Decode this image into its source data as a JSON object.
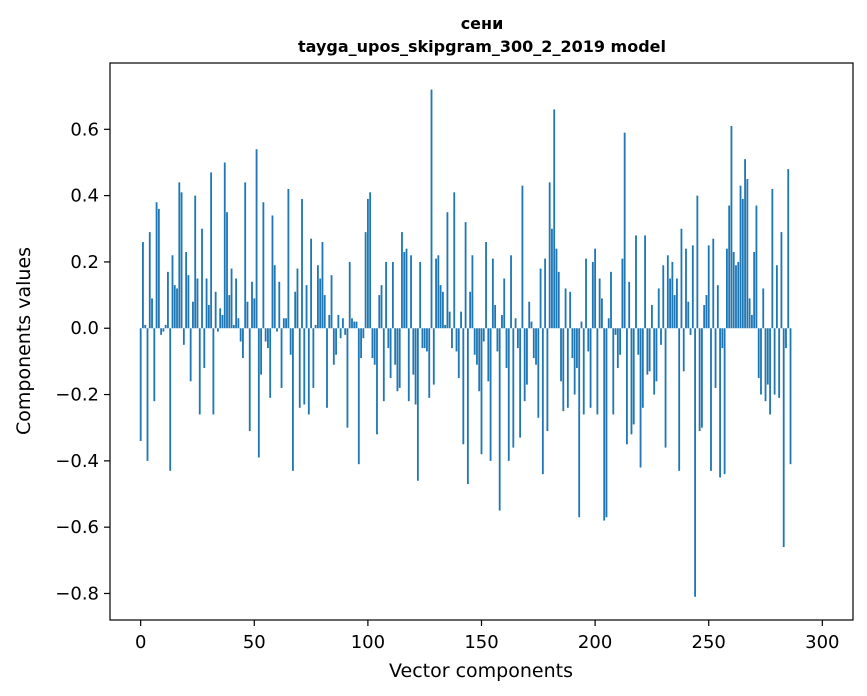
{
  "chart_data": {
    "type": "bar",
    "title": "сени",
    "subtitle": "tayga_upos_skipgram_300_2_2019 model",
    "xlabel": "Vector components",
    "ylabel": "Components values",
    "xlim": [
      -13.5,
      313.5
    ],
    "ylim": [
      -0.88,
      0.8
    ],
    "xticks": [
      0,
      50,
      100,
      150,
      200,
      250,
      300
    ],
    "yticks": [
      -0.8,
      -0.6,
      -0.4,
      -0.2,
      0.0,
      0.2,
      0.4,
      0.6
    ],
    "xtick_labels": [
      "0",
      "50",
      "100",
      "150",
      "200",
      "250",
      "300"
    ],
    "ytick_labels": [
      "−0.8",
      "−0.6",
      "−0.4",
      "−0.2",
      "0.0",
      "0.2",
      "0.4",
      "0.6"
    ],
    "bar_color": "#1f77b4",
    "grid": false,
    "values": [
      -0.34,
      0.26,
      0.01,
      -0.4,
      0.29,
      0.09,
      -0.22,
      0.38,
      0.36,
      -0.02,
      -0.01,
      0.01,
      0.17,
      -0.43,
      0.22,
      0.13,
      0.12,
      0.44,
      0.41,
      -0.05,
      0.23,
      0.16,
      -0.16,
      0.08,
      0.4,
      0.15,
      -0.26,
      0.3,
      -0.12,
      0.15,
      0.07,
      0.47,
      -0.26,
      0.11,
      -0.01,
      0.06,
      0.04,
      0.5,
      0.35,
      0.1,
      0.18,
      0.01,
      0.15,
      0.03,
      -0.04,
      -0.09,
      0.44,
      0.08,
      -0.31,
      0.14,
      0.09,
      0.54,
      -0.39,
      -0.14,
      0.38,
      -0.04,
      -0.06,
      -0.21,
      0.34,
      0.19,
      -0.01,
      0.14,
      -0.18,
      0.03,
      0.03,
      0.42,
      -0.08,
      -0.43,
      0.11,
      0.18,
      -0.24,
      0.39,
      -0.23,
      0.13,
      -0.26,
      0.27,
      -0.18,
      0.01,
      0.19,
      0.15,
      0.26,
      0.1,
      -0.24,
      0.04,
      0.16,
      -0.11,
      -0.08,
      0.04,
      -0.03,
      0.03,
      -0.02,
      -0.3,
      0.2,
      0.03,
      0.02,
      0.02,
      -0.41,
      -0.09,
      -0.03,
      0.29,
      0.39,
      0.41,
      -0.09,
      -0.11,
      -0.32,
      0.1,
      0.13,
      -0.22,
      0.2,
      -0.06,
      -0.15,
      0.2,
      -0.11,
      -0.19,
      -0.18,
      0.29,
      0.23,
      0.24,
      -0.22,
      0.22,
      -0.14,
      -0.23,
      -0.46,
      0.2,
      -0.06,
      -0.06,
      -0.07,
      -0.21,
      0.72,
      -0.17,
      0.21,
      0.22,
      0.13,
      0.11,
      0.01,
      0.35,
      0.05,
      -0.06,
      0.41,
      -0.07,
      -0.15,
      0.05,
      -0.35,
      0.32,
      -0.47,
      0.11,
      0.22,
      -0.08,
      -0.11,
      -0.19,
      -0.38,
      -0.04,
      0.26,
      -0.16,
      -0.4,
      0.21,
      0.07,
      -0.07,
      -0.55,
      0.04,
      0.15,
      -0.12,
      -0.4,
      0.22,
      -0.36,
      0.03,
      -0.06,
      -0.33,
      0.43,
      -0.22,
      -0.17,
      0.08,
      0.02,
      -0.09,
      -0.11,
      -0.27,
      0.18,
      -0.44,
      0.21,
      -0.31,
      0.44,
      0.3,
      0.66,
      0.24,
      0.17,
      -0.16,
      -0.25,
      0.12,
      -0.24,
      0.11,
      -0.09,
      -0.2,
      -0.12,
      -0.57,
      0.02,
      -0.26,
      0.21,
      -0.07,
      -0.24,
      0.2,
      0.24,
      -0.26,
      0.15,
      0.09,
      -0.58,
      -0.57,
      0.03,
      0.17,
      -0.26,
      -0.02,
      -0.12,
      -0.08,
      0.21,
      0.59,
      -0.35,
      0.14,
      -0.32,
      -0.29,
      0.28,
      -0.08,
      -0.42,
      -0.24,
      0.28,
      -0.14,
      -0.13,
      0.07,
      -0.2,
      -0.16,
      0.12,
      -0.05,
      0.19,
      -0.36,
      0.22,
      0.15,
      0.2,
      0.1,
      0.15,
      -0.43,
      0.3,
      -0.13,
      0.24,
      0.08,
      -0.02,
      0.25,
      -0.81,
      0.4,
      -0.31,
      -0.3,
      0.07,
      0.1,
      0.25,
      -0.43,
      0.27,
      -0.18,
      0.13,
      -0.45,
      -0.06,
      -0.44,
      0.24,
      0.37,
      0.61,
      0.23,
      0.19,
      0.2,
      0.43,
      0.39,
      0.51,
      0.45,
      0.09,
      0.04,
      0.23,
      0.37,
      -0.15,
      -0.2,
      0.12,
      -0.22,
      -0.17,
      -0.26,
      0.42,
      -0.2,
      0.19,
      -0.21,
      0.29,
      -0.66,
      -0.06,
      0.48,
      -0.41
    ]
  }
}
